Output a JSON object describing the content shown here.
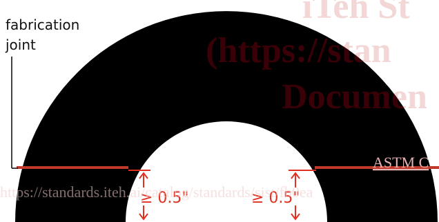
{
  "labels": {
    "fabrication_joint_line1": "fabrication",
    "fabrication_joint_line2": "joint",
    "dim_left": "≥ 0.5\"",
    "dim_right": "≥ 0.5\""
  },
  "watermark": {
    "line1": "iTeh St",
    "line2": "(https://stan",
    "line3": "Documen",
    "astm": "ASTM C",
    "url": "https://standards.iteh.ai/catalog/standards/sist/fb0ea"
  },
  "colors": {
    "shape": "#000000",
    "joint_line": "#c0392b",
    "dimension": "#e03020",
    "watermark": "#f3d9d9",
    "watermark_dark": "#3a0008",
    "label": "#111111"
  }
}
